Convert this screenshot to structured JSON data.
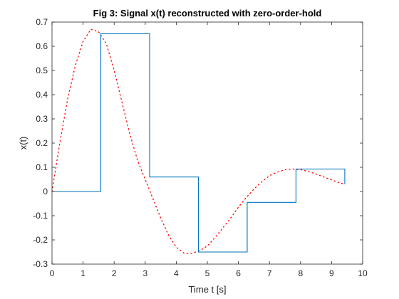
{
  "chart_data": {
    "type": "line",
    "title": "Fig 3: Signal x(t) reconstructed with zero-order-hold",
    "xlabel": "Time t [s]",
    "ylabel": "x(t)",
    "xlim": [
      0,
      10
    ],
    "ylim": [
      -0.3,
      0.7
    ],
    "xticks": [
      "0",
      "1",
      "2",
      "3",
      "4",
      "5",
      "6",
      "7",
      "8",
      "9",
      "10"
    ],
    "yticks": [
      "-0.3",
      "-0.2",
      "-0.1",
      "0",
      "0.1",
      "0.2",
      "0.3",
      "0.4",
      "0.5",
      "0.6",
      "0.7"
    ],
    "grid": false,
    "series": [
      {
        "style": "dotted",
        "color": "#ff0000",
        "x": [
          0,
          0.25,
          0.5,
          0.75,
          1.0,
          1.25,
          1.5,
          1.75,
          2.0,
          2.25,
          2.5,
          2.75,
          3.0,
          3.25,
          3.5,
          3.75,
          4.0,
          4.25,
          4.5,
          4.75,
          5.0,
          5.25,
          5.5,
          5.75,
          6.0,
          6.25,
          6.5,
          6.75,
          7.0,
          7.25,
          7.5,
          7.75,
          8.0,
          8.25,
          8.5,
          8.75,
          9.0,
          9.25,
          9.42
        ],
        "y": [
          0,
          0.2,
          0.38,
          0.52,
          0.62,
          0.67,
          0.66,
          0.61,
          0.5,
          0.37,
          0.24,
          0.13,
          0.05,
          -0.03,
          -0.11,
          -0.18,
          -0.23,
          -0.255,
          -0.255,
          -0.245,
          -0.225,
          -0.19,
          -0.15,
          -0.11,
          -0.065,
          -0.025,
          0.01,
          0.04,
          0.065,
          0.08,
          0.09,
          0.093,
          0.09,
          0.083,
          0.072,
          0.06,
          0.048,
          0.036,
          0.03
        ]
      },
      {
        "style": "zero-order-hold",
        "color": "#0072bd",
        "x": [
          0,
          1.571,
          3.142,
          4.712,
          6.283,
          7.854,
          9.425
        ],
        "y": [
          0,
          0.652,
          0.06,
          -0.25,
          -0.045,
          0.093,
          0.03
        ]
      }
    ]
  }
}
